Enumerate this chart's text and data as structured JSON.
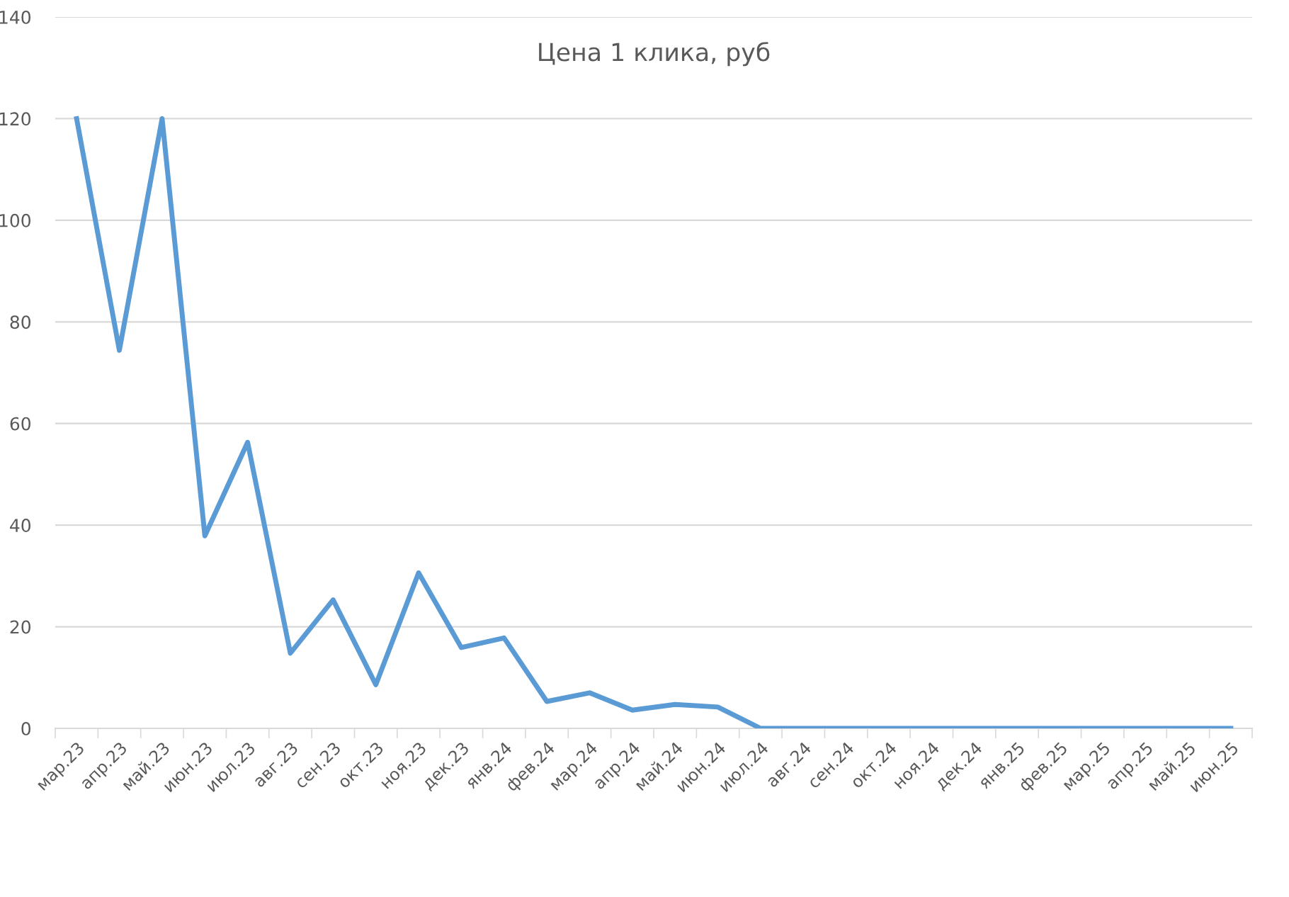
{
  "chart_data": {
    "type": "line",
    "title": "Цена 1 клика, руб",
    "categories": [
      "мар.23",
      "апр.23",
      "май.23",
      "июн.23",
      "июл.23",
      "авг.23",
      "сен.23",
      "окт.23",
      "ноя.23",
      "дек.23",
      "янв.24",
      "фев.24",
      "мар.24",
      "апр.24",
      "май.24",
      "июн.24",
      "июл.24",
      "авг.24",
      "сен.24",
      "окт.24",
      "ноя.24",
      "дек.24",
      "янв.25",
      "фев.25",
      "мар.25",
      "апр.25",
      "май.25",
      "июн.25"
    ],
    "series": [
      {
        "color": "#5b9bd5",
        "values": [
          120,
          74.4,
          120,
          37.9,
          56.3,
          14.8,
          25.3,
          8.6,
          30.6,
          15.9,
          17.8,
          5.3,
          7,
          3.6,
          4.7,
          4.2,
          0,
          0,
          0,
          0,
          0,
          0,
          0,
          0,
          0,
          0,
          0,
          0
        ]
      }
    ],
    "ylim": [
      0,
      140
    ],
    "yticks": [
      0,
      20,
      40,
      60,
      80,
      100,
      120,
      140
    ],
    "grid": "y",
    "marker": "none",
    "line_style": "solid"
  }
}
